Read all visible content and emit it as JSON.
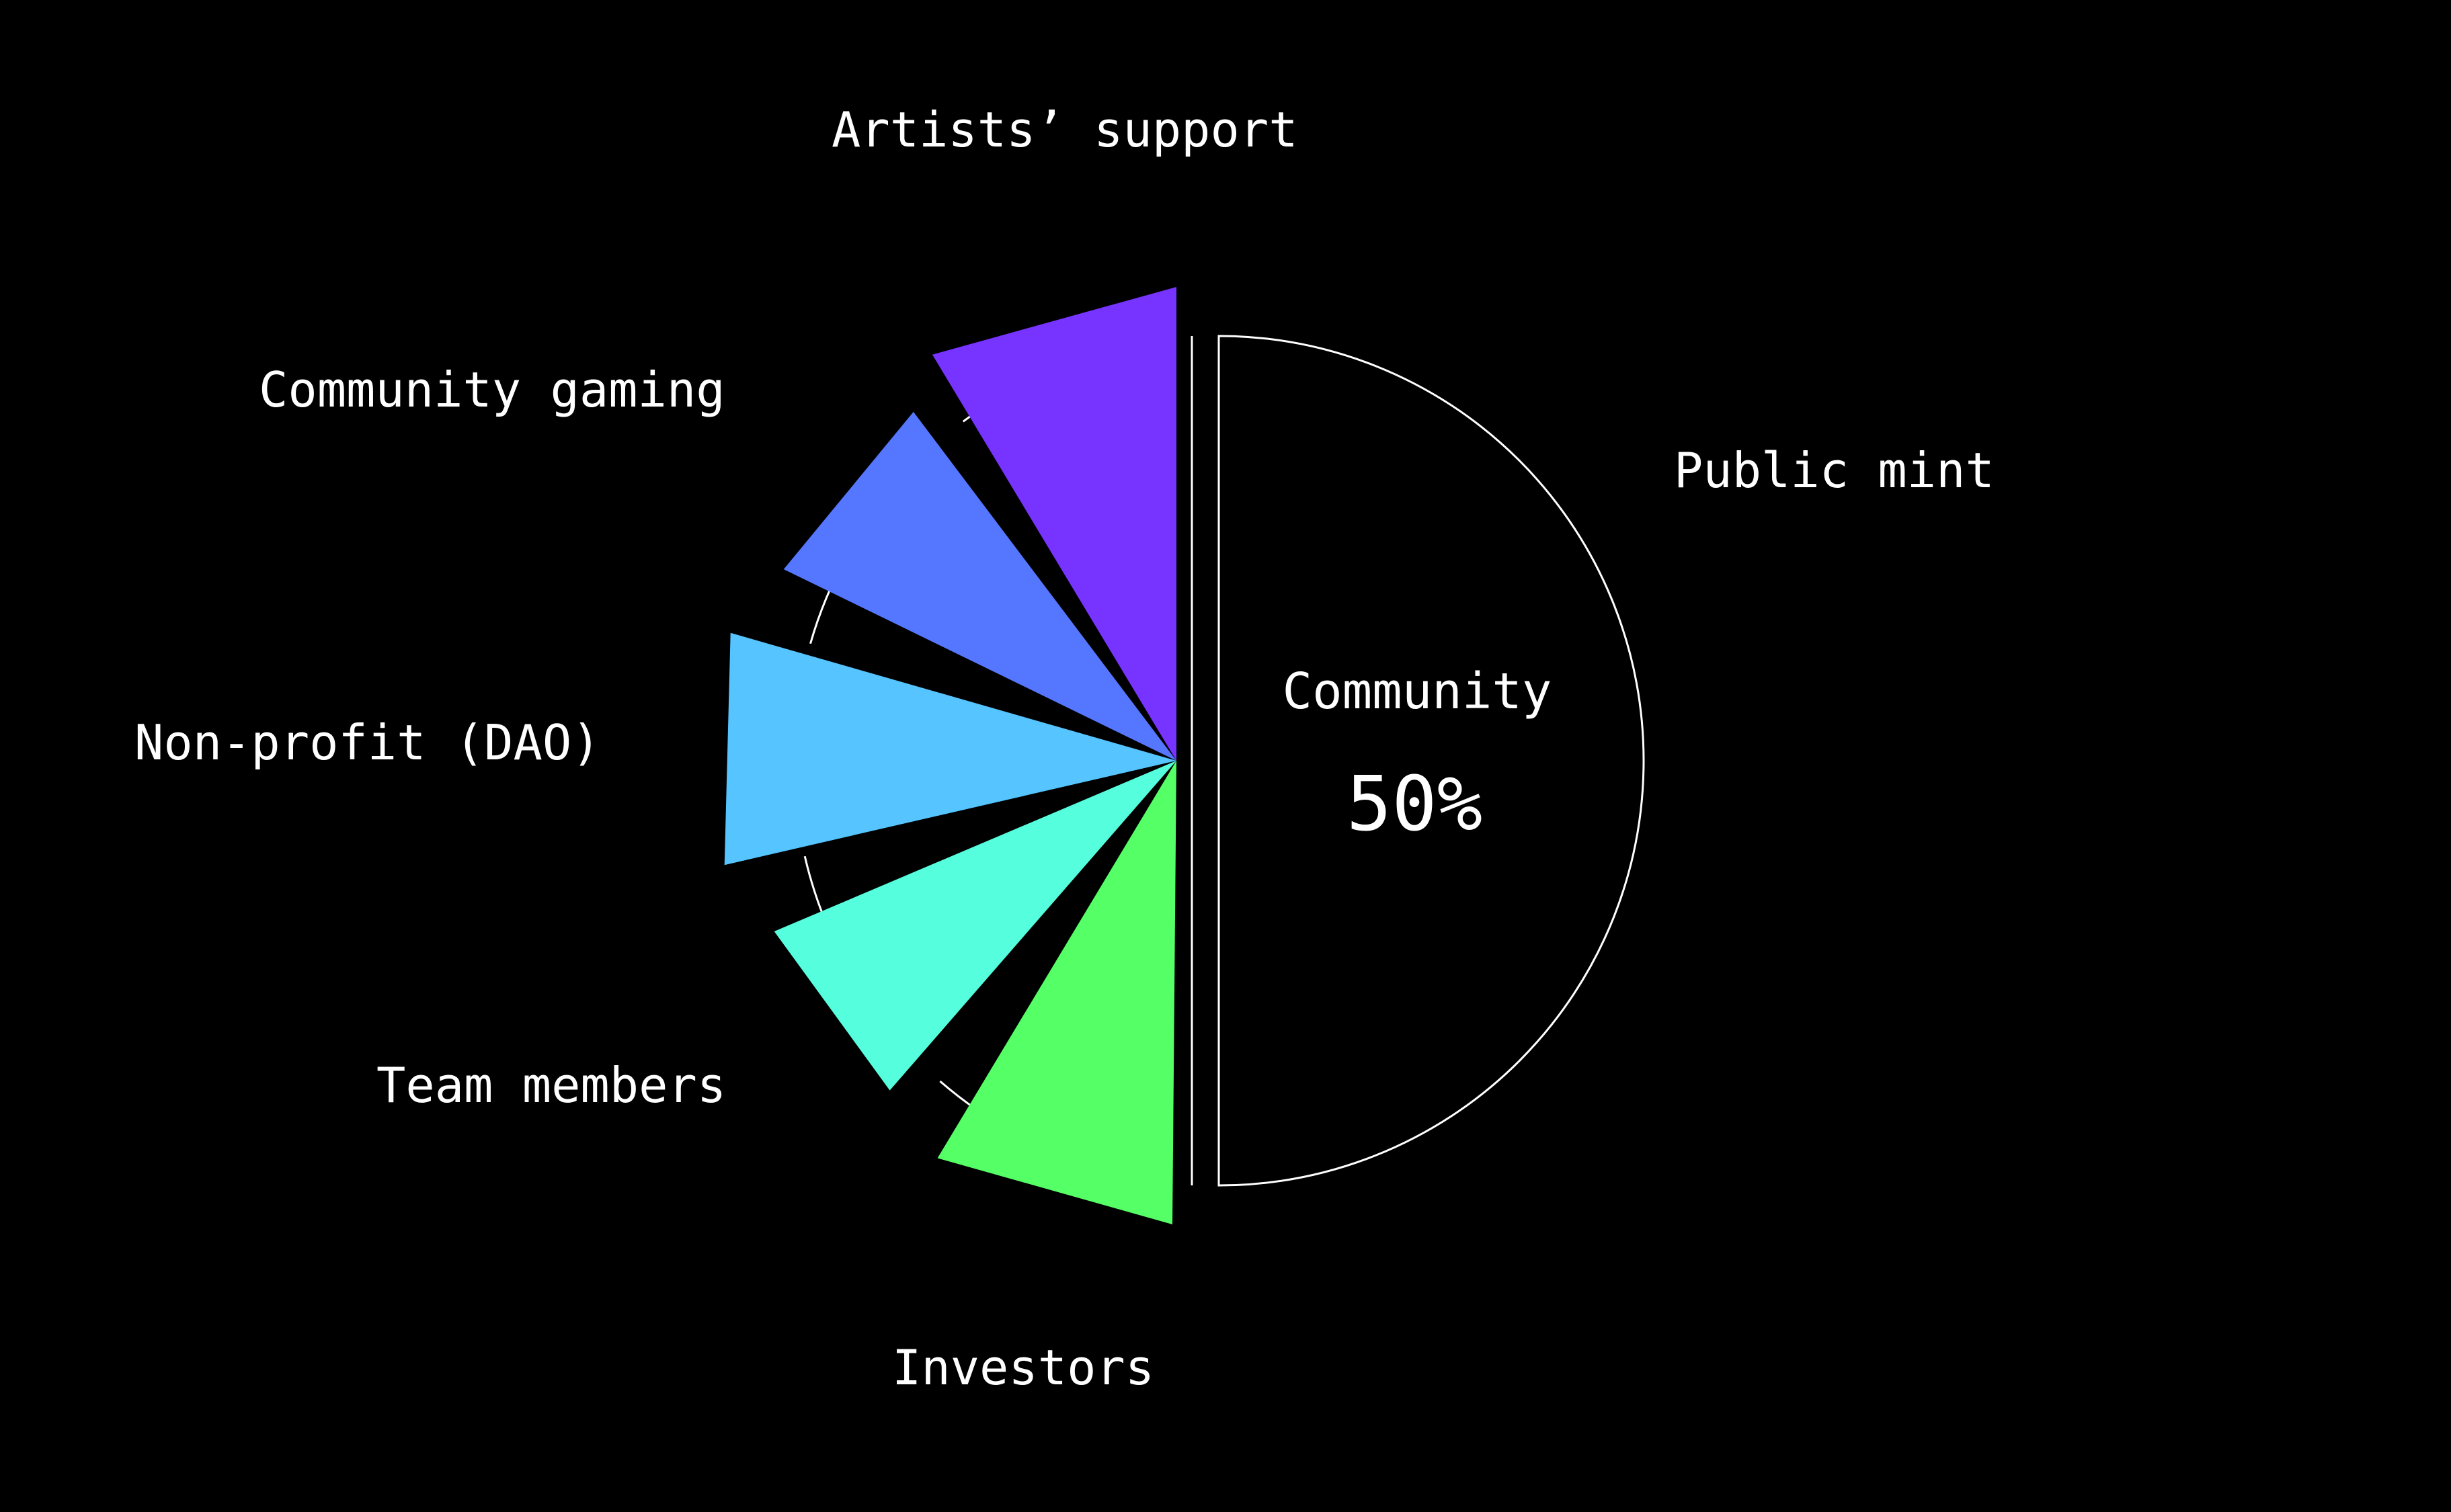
{
  "chart_data": {
    "type": "pie",
    "center": {
      "title": "Community",
      "value_label": "50%"
    },
    "slices": [
      {
        "label": "Public mint",
        "value": 50,
        "color": "#000000",
        "style": "outlined"
      },
      {
        "label": "Investors",
        "color": "#55ff66"
      },
      {
        "label": "Team members",
        "color": "#55ffdd"
      },
      {
        "label": "Non-profit (DAO)",
        "color": "#55c4ff"
      },
      {
        "label": "Community gaming",
        "color": "#5577ff"
      },
      {
        "label": "Artists’ support",
        "color": "#7733ff"
      }
    ],
    "outline_color": "#ffffff",
    "background": "#000000"
  }
}
